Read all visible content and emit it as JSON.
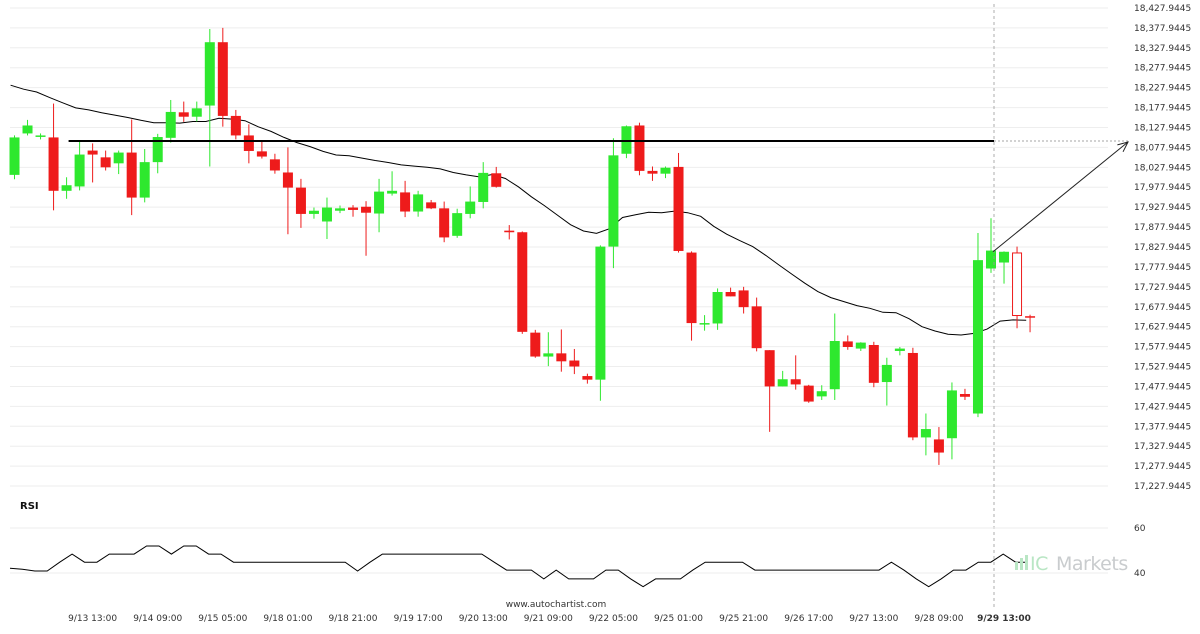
{
  "brand": {
    "prefix": "IC",
    "name": "Markets"
  },
  "watermark": "www.autochartist.com",
  "rsi_label": "RSI",
  "colors": {
    "up": "#2ee82e",
    "down": "#ee1b1b",
    "ma": "#000000",
    "level": "#000000",
    "grid": "#eeeeee"
  },
  "chart_data": [
    {
      "type": "candlestick",
      "title": "",
      "xlabel": "",
      "ylabel": "",
      "ylim": [
        17197.9445,
        18447.9445
      ],
      "yticks": [
        "18,427.9445",
        "18,377.9445",
        "18,327.9445",
        "18,277.9445",
        "18,227.9445",
        "18,177.9445",
        "18,127.9445",
        "18,077.9445",
        "18,027.9445",
        "17,977.9445",
        "17,927.9445",
        "17,877.9445",
        "17,827.9445",
        "17,777.9445",
        "17,727.9445",
        "17,677.9445",
        "17,627.9445",
        "17,577.9445",
        "17,527.9445",
        "17,477.9445",
        "17,427.9445",
        "17,377.9445",
        "17,327.9445",
        "17,277.9445",
        "17,227.9445"
      ],
      "xticks": [
        {
          "label": "9/13 13:00",
          "i": 6
        },
        {
          "label": "9/14 09:00",
          "i": 11
        },
        {
          "label": "9/15 05:00",
          "i": 16
        },
        {
          "label": "9/18 01:00",
          "i": 21
        },
        {
          "label": "9/18 21:00",
          "i": 26
        },
        {
          "label": "9/19 17:00",
          "i": 31
        },
        {
          "label": "9/20 13:00",
          "i": 36
        },
        {
          "label": "9/21 09:00",
          "i": 41
        },
        {
          "label": "9/22 05:00",
          "i": 46
        },
        {
          "label": "9/25 01:00",
          "i": 51
        },
        {
          "label": "9/25 21:00",
          "i": 56
        },
        {
          "label": "9/26 17:00",
          "i": 61
        },
        {
          "label": "9/27 13:00",
          "i": 66
        },
        {
          "label": "9/28 09:00",
          "i": 71
        },
        {
          "label": "9/29 13:00",
          "i": 76,
          "bold": true
        }
      ],
      "candles": [
        {
          "o": 18009,
          "h": 18108,
          "l": 17998,
          "c": 18103
        },
        {
          "o": 18113,
          "h": 18147,
          "l": 18108,
          "c": 18133
        },
        {
          "o": 18108,
          "h": 18113,
          "l": 18098,
          "c": 18108
        },
        {
          "o": 18103,
          "h": 18188,
          "l": 17920,
          "c": 17969
        },
        {
          "o": 17969,
          "h": 18003,
          "l": 17949,
          "c": 17983
        },
        {
          "o": 17980,
          "h": 18093,
          "l": 17970,
          "c": 18060
        },
        {
          "o": 18070,
          "h": 18088,
          "l": 17990,
          "c": 18060
        },
        {
          "o": 18053,
          "h": 18070,
          "l": 18020,
          "c": 18028
        },
        {
          "o": 18038,
          "h": 18070,
          "l": 18011,
          "c": 18065
        },
        {
          "o": 18065,
          "h": 18148,
          "l": 17908,
          "c": 17952
        },
        {
          "o": 17952,
          "h": 18074,
          "l": 17940,
          "c": 18041
        },
        {
          "o": 18041,
          "h": 18112,
          "l": 18013,
          "c": 18104
        },
        {
          "o": 18102,
          "h": 18197,
          "l": 18090,
          "c": 18167
        },
        {
          "o": 18166,
          "h": 18193,
          "l": 18142,
          "c": 18155
        },
        {
          "o": 18155,
          "h": 18193,
          "l": 18143,
          "c": 18176
        },
        {
          "o": 18183,
          "h": 18375,
          "l": 18030,
          "c": 18342
        },
        {
          "o": 18342,
          "h": 18378,
          "l": 18130,
          "c": 18157
        },
        {
          "o": 18157,
          "h": 18172,
          "l": 18098,
          "c": 18108
        },
        {
          "o": 18108,
          "h": 18136,
          "l": 18038,
          "c": 18069
        },
        {
          "o": 18068,
          "h": 18093,
          "l": 18050,
          "c": 18055
        },
        {
          "o": 18048,
          "h": 18062,
          "l": 18012,
          "c": 18020
        },
        {
          "o": 18015,
          "h": 18078,
          "l": 17860,
          "c": 17977
        },
        {
          "o": 17977,
          "h": 17999,
          "l": 17876,
          "c": 17911
        },
        {
          "o": 17911,
          "h": 17927,
          "l": 17899,
          "c": 17919
        },
        {
          "o": 17892,
          "h": 17952,
          "l": 17848,
          "c": 17927
        },
        {
          "o": 17919,
          "h": 17932,
          "l": 17913,
          "c": 17925
        },
        {
          "o": 17927,
          "h": 17933,
          "l": 17904,
          "c": 17921
        },
        {
          "o": 17929,
          "h": 17943,
          "l": 17806,
          "c": 17914
        },
        {
          "o": 17912,
          "h": 17999,
          "l": 17865,
          "c": 17967
        },
        {
          "o": 17962,
          "h": 18018,
          "l": 17957,
          "c": 17969
        },
        {
          "o": 17965,
          "h": 17994,
          "l": 17903,
          "c": 17917
        },
        {
          "o": 17917,
          "h": 17969,
          "l": 17904,
          "c": 17960
        },
        {
          "o": 17940,
          "h": 17946,
          "l": 17923,
          "c": 17925
        },
        {
          "o": 17925,
          "h": 17942,
          "l": 17840,
          "c": 17852
        },
        {
          "o": 17856,
          "h": 17924,
          "l": 17851,
          "c": 17913
        },
        {
          "o": 17911,
          "h": 17980,
          "l": 17900,
          "c": 17942
        },
        {
          "o": 17941,
          "h": 18041,
          "l": 17925,
          "c": 18014
        },
        {
          "o": 18013,
          "h": 18029,
          "l": 17977,
          "c": 17979
        },
        {
          "o": 17869,
          "h": 17883,
          "l": 17847,
          "c": 17865
        },
        {
          "o": 17865,
          "h": 17867,
          "l": 17610,
          "c": 17615
        },
        {
          "o": 17613,
          "h": 17620,
          "l": 17550,
          "c": 17553
        },
        {
          "o": 17553,
          "h": 17614,
          "l": 17529,
          "c": 17561
        },
        {
          "o": 17561,
          "h": 17621,
          "l": 17515,
          "c": 17541
        },
        {
          "o": 17543,
          "h": 17572,
          "l": 17509,
          "c": 17528
        },
        {
          "o": 17504,
          "h": 17510,
          "l": 17485,
          "c": 17495
        },
        {
          "o": 17495,
          "h": 17832,
          "l": 17442,
          "c": 17829
        },
        {
          "o": 17829,
          "h": 18101,
          "l": 17775,
          "c": 18058
        },
        {
          "o": 18062,
          "h": 18133,
          "l": 18051,
          "c": 18131
        },
        {
          "o": 18133,
          "h": 18140,
          "l": 18008,
          "c": 18019
        },
        {
          "o": 18019,
          "h": 18030,
          "l": 17994,
          "c": 18012
        },
        {
          "o": 18012,
          "h": 18030,
          "l": 18001,
          "c": 18027
        },
        {
          "o": 18029,
          "h": 18064,
          "l": 17814,
          "c": 17818
        },
        {
          "o": 17814,
          "h": 17817,
          "l": 17593,
          "c": 17637
        },
        {
          "o": 17637,
          "h": 17657,
          "l": 17618,
          "c": 17637
        },
        {
          "o": 17636,
          "h": 17724,
          "l": 17620,
          "c": 17715
        },
        {
          "o": 17715,
          "h": 17726,
          "l": 17707,
          "c": 17704
        },
        {
          "o": 17719,
          "h": 17728,
          "l": 17661,
          "c": 17677
        },
        {
          "o": 17679,
          "h": 17701,
          "l": 17566,
          "c": 17574
        },
        {
          "o": 17569,
          "h": 17558,
          "l": 17364,
          "c": 17478
        },
        {
          "o": 17478,
          "h": 17517,
          "l": 17478,
          "c": 17496
        },
        {
          "o": 17496,
          "h": 17556,
          "l": 17470,
          "c": 17483
        },
        {
          "o": 17480,
          "h": 17482,
          "l": 17437,
          "c": 17440
        },
        {
          "o": 17453,
          "h": 17481,
          "l": 17444,
          "c": 17466
        },
        {
          "o": 17471,
          "h": 17661,
          "l": 17444,
          "c": 17592
        },
        {
          "o": 17591,
          "h": 17606,
          "l": 17570,
          "c": 17577
        },
        {
          "o": 17573,
          "h": 17589,
          "l": 17567,
          "c": 17588
        },
        {
          "o": 17582,
          "h": 17590,
          "l": 17476,
          "c": 17487
        },
        {
          "o": 17489,
          "h": 17550,
          "l": 17430,
          "c": 17532
        },
        {
          "o": 17567,
          "h": 17577,
          "l": 17556,
          "c": 17573
        },
        {
          "o": 17562,
          "h": 17575,
          "l": 17343,
          "c": 17350
        },
        {
          "o": 17350,
          "h": 17410,
          "l": 17305,
          "c": 17371
        },
        {
          "o": 17345,
          "h": 17376,
          "l": 17281,
          "c": 17312
        },
        {
          "o": 17348,
          "h": 17488,
          "l": 17295,
          "c": 17468
        },
        {
          "o": 17459,
          "h": 17472,
          "l": 17444,
          "c": 17452
        },
        {
          "o": 17410,
          "h": 17863,
          "l": 17401,
          "c": 17795
        },
        {
          "o": 17774,
          "h": 17900,
          "l": 17763,
          "c": 17819
        },
        {
          "o": 17789,
          "h": 17817,
          "l": 17736,
          "c": 17816
        },
        {
          "o": 17813,
          "h": 17829,
          "l": 17624,
          "c": 17656
        },
        {
          "o": 17653,
          "h": 17658,
          "l": 17614,
          "c": 17647
        }
      ],
      "moving_average": [
        18234,
        18224,
        18217,
        18203,
        18190,
        18177,
        18172,
        18165,
        18159,
        18153,
        18146,
        18140,
        18140,
        18139,
        18143,
        18143,
        18151,
        18149,
        18145,
        18130,
        18118,
        18103,
        18090,
        18080,
        18068,
        18059,
        18057,
        18051,
        18045,
        18040,
        18034,
        18031,
        18028,
        18024,
        18015,
        18009,
        18004,
        18010,
        18000,
        17979,
        17954,
        17932,
        17908,
        17884,
        17868,
        17862,
        17874,
        17902,
        17909,
        17915,
        17914,
        17918,
        17914,
        17905,
        17880,
        17860,
        17844,
        17829,
        17807,
        17783,
        17760,
        17737,
        17716,
        17701,
        17691,
        17681,
        17674,
        17664,
        17663,
        17648,
        17628,
        17617,
        17609,
        17607,
        17611,
        17622,
        17642,
        17645,
        17644
      ],
      "resistance_level": {
        "value": 18094,
        "from_i": 4
      },
      "projection": {
        "from_i": 75,
        "from_value": 17816,
        "value": 18094
      },
      "rsi": {
        "ylim": [
          28,
          68
        ],
        "yticks": [
          "60",
          "40"
        ],
        "values": [
          42.1,
          41.7,
          40.9,
          40.9,
          44.8,
          48.4,
          44.8,
          44.8,
          48.4,
          48.4,
          48.4,
          52.0,
          52.0,
          48.4,
          52.0,
          52.0,
          48.4,
          48.4,
          44.8,
          44.8,
          44.8,
          44.8,
          44.8,
          44.8,
          44.8,
          44.8,
          44.8,
          44.8,
          40.9,
          44.8,
          48.4,
          48.4,
          48.4,
          48.4,
          48.4,
          48.4,
          48.4,
          48.4,
          48.4,
          44.8,
          41.3,
          41.3,
          41.3,
          37.4,
          41.3,
          37.4,
          37.4,
          37.4,
          41.3,
          41.3,
          37.4,
          33.9,
          37.4,
          37.4,
          37.4,
          41.3,
          44.8,
          44.8,
          44.8,
          44.8,
          41.3,
          41.3,
          41.3,
          41.3,
          41.3,
          41.3,
          41.3,
          41.3,
          41.3,
          41.3,
          41.3,
          44.8,
          41.3,
          37.4,
          33.9,
          37.4,
          41.3,
          41.3,
          44.8,
          44.8,
          48.4,
          44.8,
          44.8
        ]
      }
    }
  ]
}
